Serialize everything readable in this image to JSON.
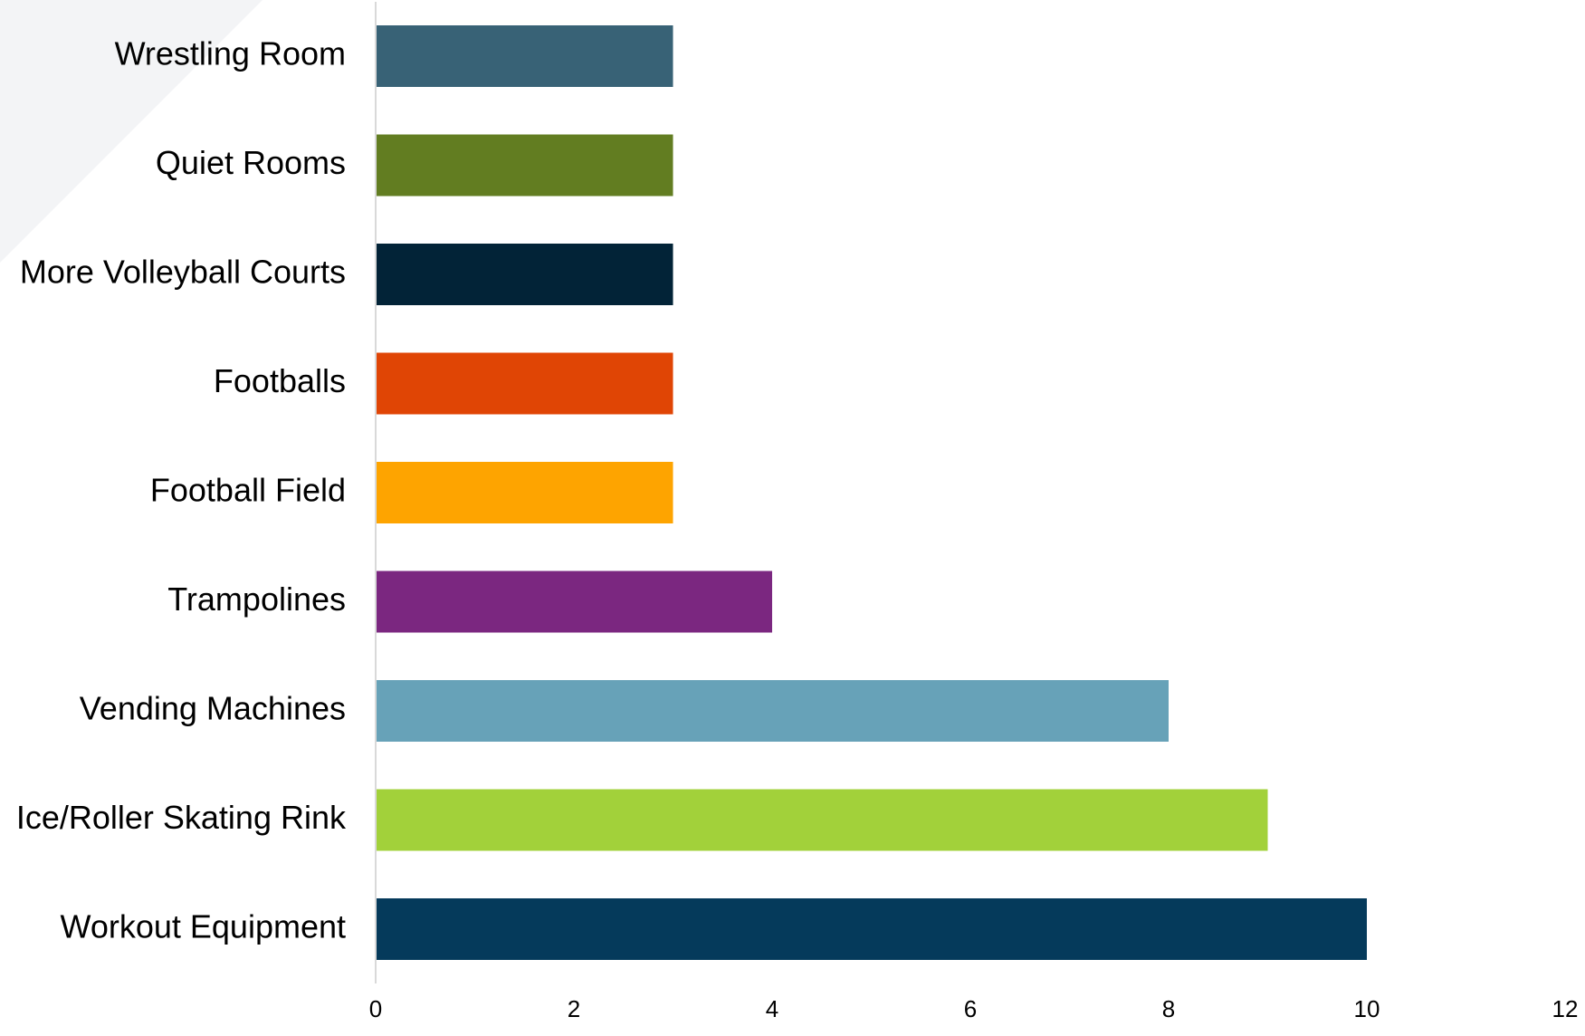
{
  "chart_data": {
    "type": "bar",
    "orientation": "horizontal",
    "title": "",
    "xlabel": "",
    "ylabel": "",
    "categories": [
      "Wrestling Room",
      "Quiet Rooms",
      "More Volleyball Courts",
      "Footballs",
      "Football Field",
      "Trampolines",
      "Vending Machines",
      "Ice/Roller Skating Rink",
      "Workout Equipment"
    ],
    "values": [
      3,
      3,
      3,
      3,
      3,
      4,
      8,
      9,
      10
    ],
    "colors": [
      "#386276",
      "#627d21",
      "#022337",
      "#e04505",
      "#fea400",
      "#7b2780",
      "#67a2b8",
      "#a2d13a",
      "#053a5b"
    ],
    "xlim": [
      0,
      12
    ],
    "xticks": [
      0,
      2,
      4,
      6,
      8,
      10,
      12
    ],
    "grid": false,
    "legend": "none",
    "background_accent": "#f3f4f6",
    "axis_color": "#d9d9d9",
    "text_color": "#000000"
  }
}
